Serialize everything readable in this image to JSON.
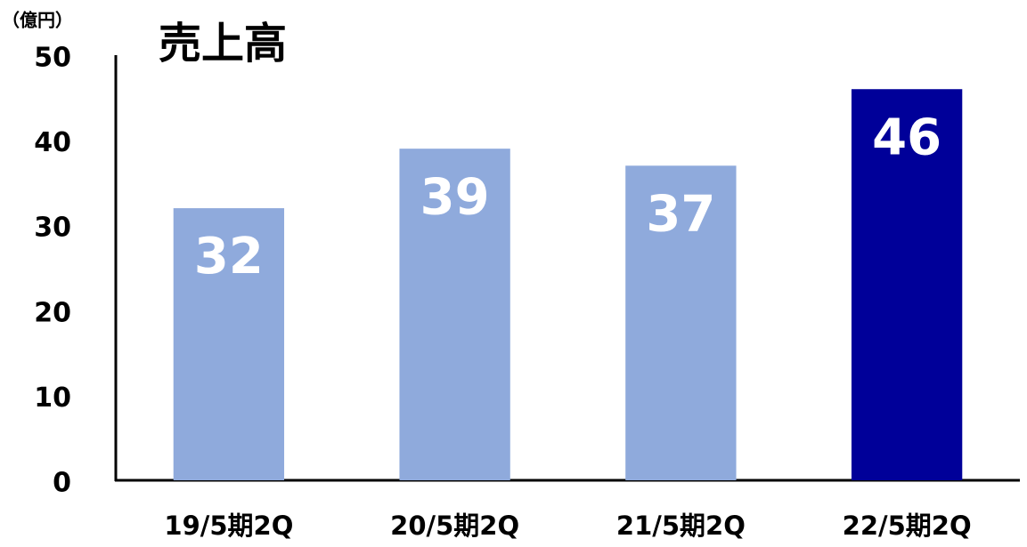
{
  "chart_data": {
    "type": "bar",
    "title": "売上高",
    "y_axis_label": "（億円）",
    "categories": [
      "19/5期2Q",
      "20/5期2Q",
      "21/5期2Q",
      "22/5期2Q"
    ],
    "values": [
      32,
      39,
      37,
      46
    ],
    "colors": [
      "#8faadc",
      "#8faadc",
      "#8faadc",
      "#000099"
    ],
    "ylim": [
      0,
      50
    ],
    "yticks": [
      0,
      10,
      20,
      30,
      40,
      50
    ],
    "grid": false
  }
}
